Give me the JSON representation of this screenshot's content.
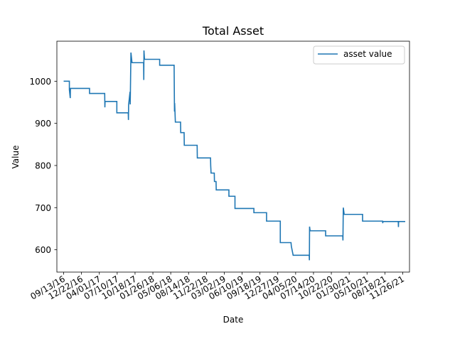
{
  "chart_data": {
    "type": "line",
    "title": "Total Asset",
    "xlabel": "Date",
    "ylabel": "Value",
    "legend": {
      "position": "top-right",
      "entries": [
        "asset value"
      ]
    },
    "grid": false,
    "x_axis": {
      "type": "date",
      "range": [
        "2016-08-06",
        "2022-01-03"
      ],
      "ticks": [
        "2016-09-13",
        "2016-12-22",
        "2017-04-01",
        "2017-07-10",
        "2017-10-18",
        "2018-01-26",
        "2018-05-06",
        "2018-08-14",
        "2018-11-22",
        "2019-03-02",
        "2019-06-10",
        "2019-09-18",
        "2019-12-27",
        "2020-04-05",
        "2020-07-14",
        "2020-10-22",
        "2021-01-30",
        "2021-05-10",
        "2021-08-18",
        "2021-11-26"
      ],
      "tick_labels": [
        "09/13/16",
        "12/22/16",
        "04/01/17",
        "07/10/17",
        "10/18/17",
        "01/26/18",
        "05/06/18",
        "08/14/18",
        "11/22/18",
        "03/02/19",
        "06/10/19",
        "09/18/19",
        "12/27/19",
        "04/05/20",
        "07/14/20",
        "10/22/20",
        "01/30/21",
        "05/10/21",
        "08/18/21",
        "11/26/21"
      ]
    },
    "y_axis": {
      "range": [
        547,
        1095
      ],
      "ticks": [
        600,
        700,
        800,
        900,
        1000
      ],
      "tick_labels": [
        "600",
        "700",
        "800",
        "900",
        "1000"
      ]
    },
    "color": "#1f77b4",
    "series": [
      {
        "name": "asset value",
        "points": [
          [
            "2016-09-13",
            1000
          ],
          [
            "2016-10-15",
            1000
          ],
          [
            "2016-10-15",
            980
          ],
          [
            "2016-10-20",
            960
          ],
          [
            "2016-10-21",
            983
          ],
          [
            "2017-02-05",
            983
          ],
          [
            "2017-02-05",
            971
          ],
          [
            "2017-05-01",
            971
          ],
          [
            "2017-05-02",
            938
          ],
          [
            "2017-05-03",
            952
          ],
          [
            "2017-07-08",
            952
          ],
          [
            "2017-07-08",
            925
          ],
          [
            "2017-09-10",
            925
          ],
          [
            "2017-09-11",
            908
          ],
          [
            "2017-09-12",
            944
          ],
          [
            "2017-09-20",
            975
          ],
          [
            "2017-09-21",
            945
          ],
          [
            "2017-09-25",
            1068
          ],
          [
            "2017-10-01",
            1044
          ],
          [
            "2017-12-05",
            1044
          ],
          [
            "2017-12-06",
            1003
          ],
          [
            "2017-12-07",
            1073
          ],
          [
            "2017-12-10",
            1052
          ],
          [
            "2018-03-05",
            1052
          ],
          [
            "2018-03-05",
            1038
          ],
          [
            "2018-05-25",
            1038
          ],
          [
            "2018-05-27",
            928
          ],
          [
            "2018-05-28",
            948
          ],
          [
            "2018-06-01",
            903
          ],
          [
            "2018-06-30",
            903
          ],
          [
            "2018-07-01",
            878
          ],
          [
            "2018-07-20",
            878
          ],
          [
            "2018-07-21",
            848
          ],
          [
            "2018-10-01",
            848
          ],
          [
            "2018-10-02",
            818
          ],
          [
            "2018-12-15",
            818
          ],
          [
            "2018-12-16",
            800
          ],
          [
            "2018-12-18",
            782
          ],
          [
            "2019-01-05",
            782
          ],
          [
            "2019-01-06",
            762
          ],
          [
            "2019-01-15",
            762
          ],
          [
            "2019-01-16",
            742
          ],
          [
            "2019-03-28",
            742
          ],
          [
            "2019-03-28",
            727
          ],
          [
            "2019-05-01",
            727
          ],
          [
            "2019-05-01",
            698
          ],
          [
            "2019-08-15",
            698
          ],
          [
            "2019-08-15",
            688
          ],
          [
            "2019-10-25",
            688
          ],
          [
            "2019-10-25",
            668
          ],
          [
            "2020-01-10",
            668
          ],
          [
            "2020-01-10",
            617
          ],
          [
            "2020-03-10",
            617
          ],
          [
            "2020-03-12",
            608
          ],
          [
            "2020-03-22",
            587
          ],
          [
            "2020-06-20",
            587
          ],
          [
            "2020-06-21",
            575
          ],
          [
            "2020-06-22",
            655
          ],
          [
            "2020-06-25",
            645
          ],
          [
            "2020-09-20",
            645
          ],
          [
            "2020-09-20",
            633
          ],
          [
            "2020-12-25",
            633
          ],
          [
            "2020-12-26",
            622
          ],
          [
            "2020-12-28",
            700
          ],
          [
            "2021-01-02",
            684
          ],
          [
            "2021-04-15",
            684
          ],
          [
            "2021-04-15",
            668
          ],
          [
            "2021-08-05",
            668
          ],
          [
            "2021-08-06",
            663
          ],
          [
            "2021-08-07",
            667
          ],
          [
            "2021-11-01",
            667
          ],
          [
            "2021-11-02",
            654
          ],
          [
            "2021-11-03",
            667
          ],
          [
            "2021-12-10",
            667
          ]
        ]
      }
    ]
  }
}
